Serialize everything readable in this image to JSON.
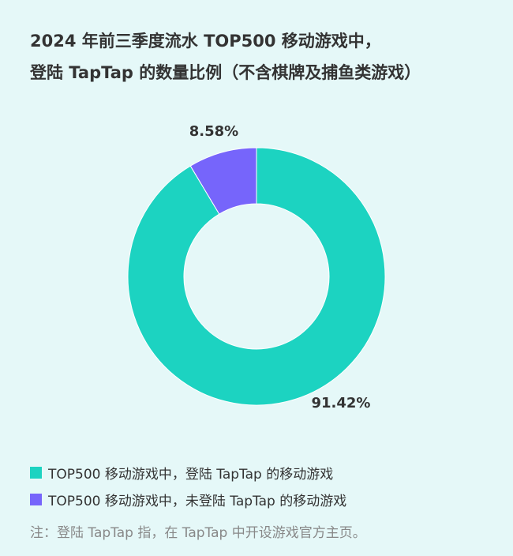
{
  "title_line1": "2024 年前三季度流水 TOP500 移动游戏中，",
  "title_line2": "登陆 TapTap 的数量比例（不含棋牌及捕鱼类游戏）",
  "chart_data": {
    "type": "pie",
    "donut": true,
    "series": [
      {
        "name": "TOP500 移动游戏中，登陆 TapTap 的移动游戏",
        "value": 91.42,
        "label": "91.42%",
        "color": "#1cd3c1"
      },
      {
        "name": "TOP500 移动游戏中，未登陆 TapTap 的移动游戏",
        "value": 8.58,
        "label": "8.58%",
        "color": "#7665fb"
      }
    ],
    "legend_position": "bottom-left"
  },
  "note": "注：登陆 TapTap 指，在 TapTap 中开设游戏官方主页。"
}
